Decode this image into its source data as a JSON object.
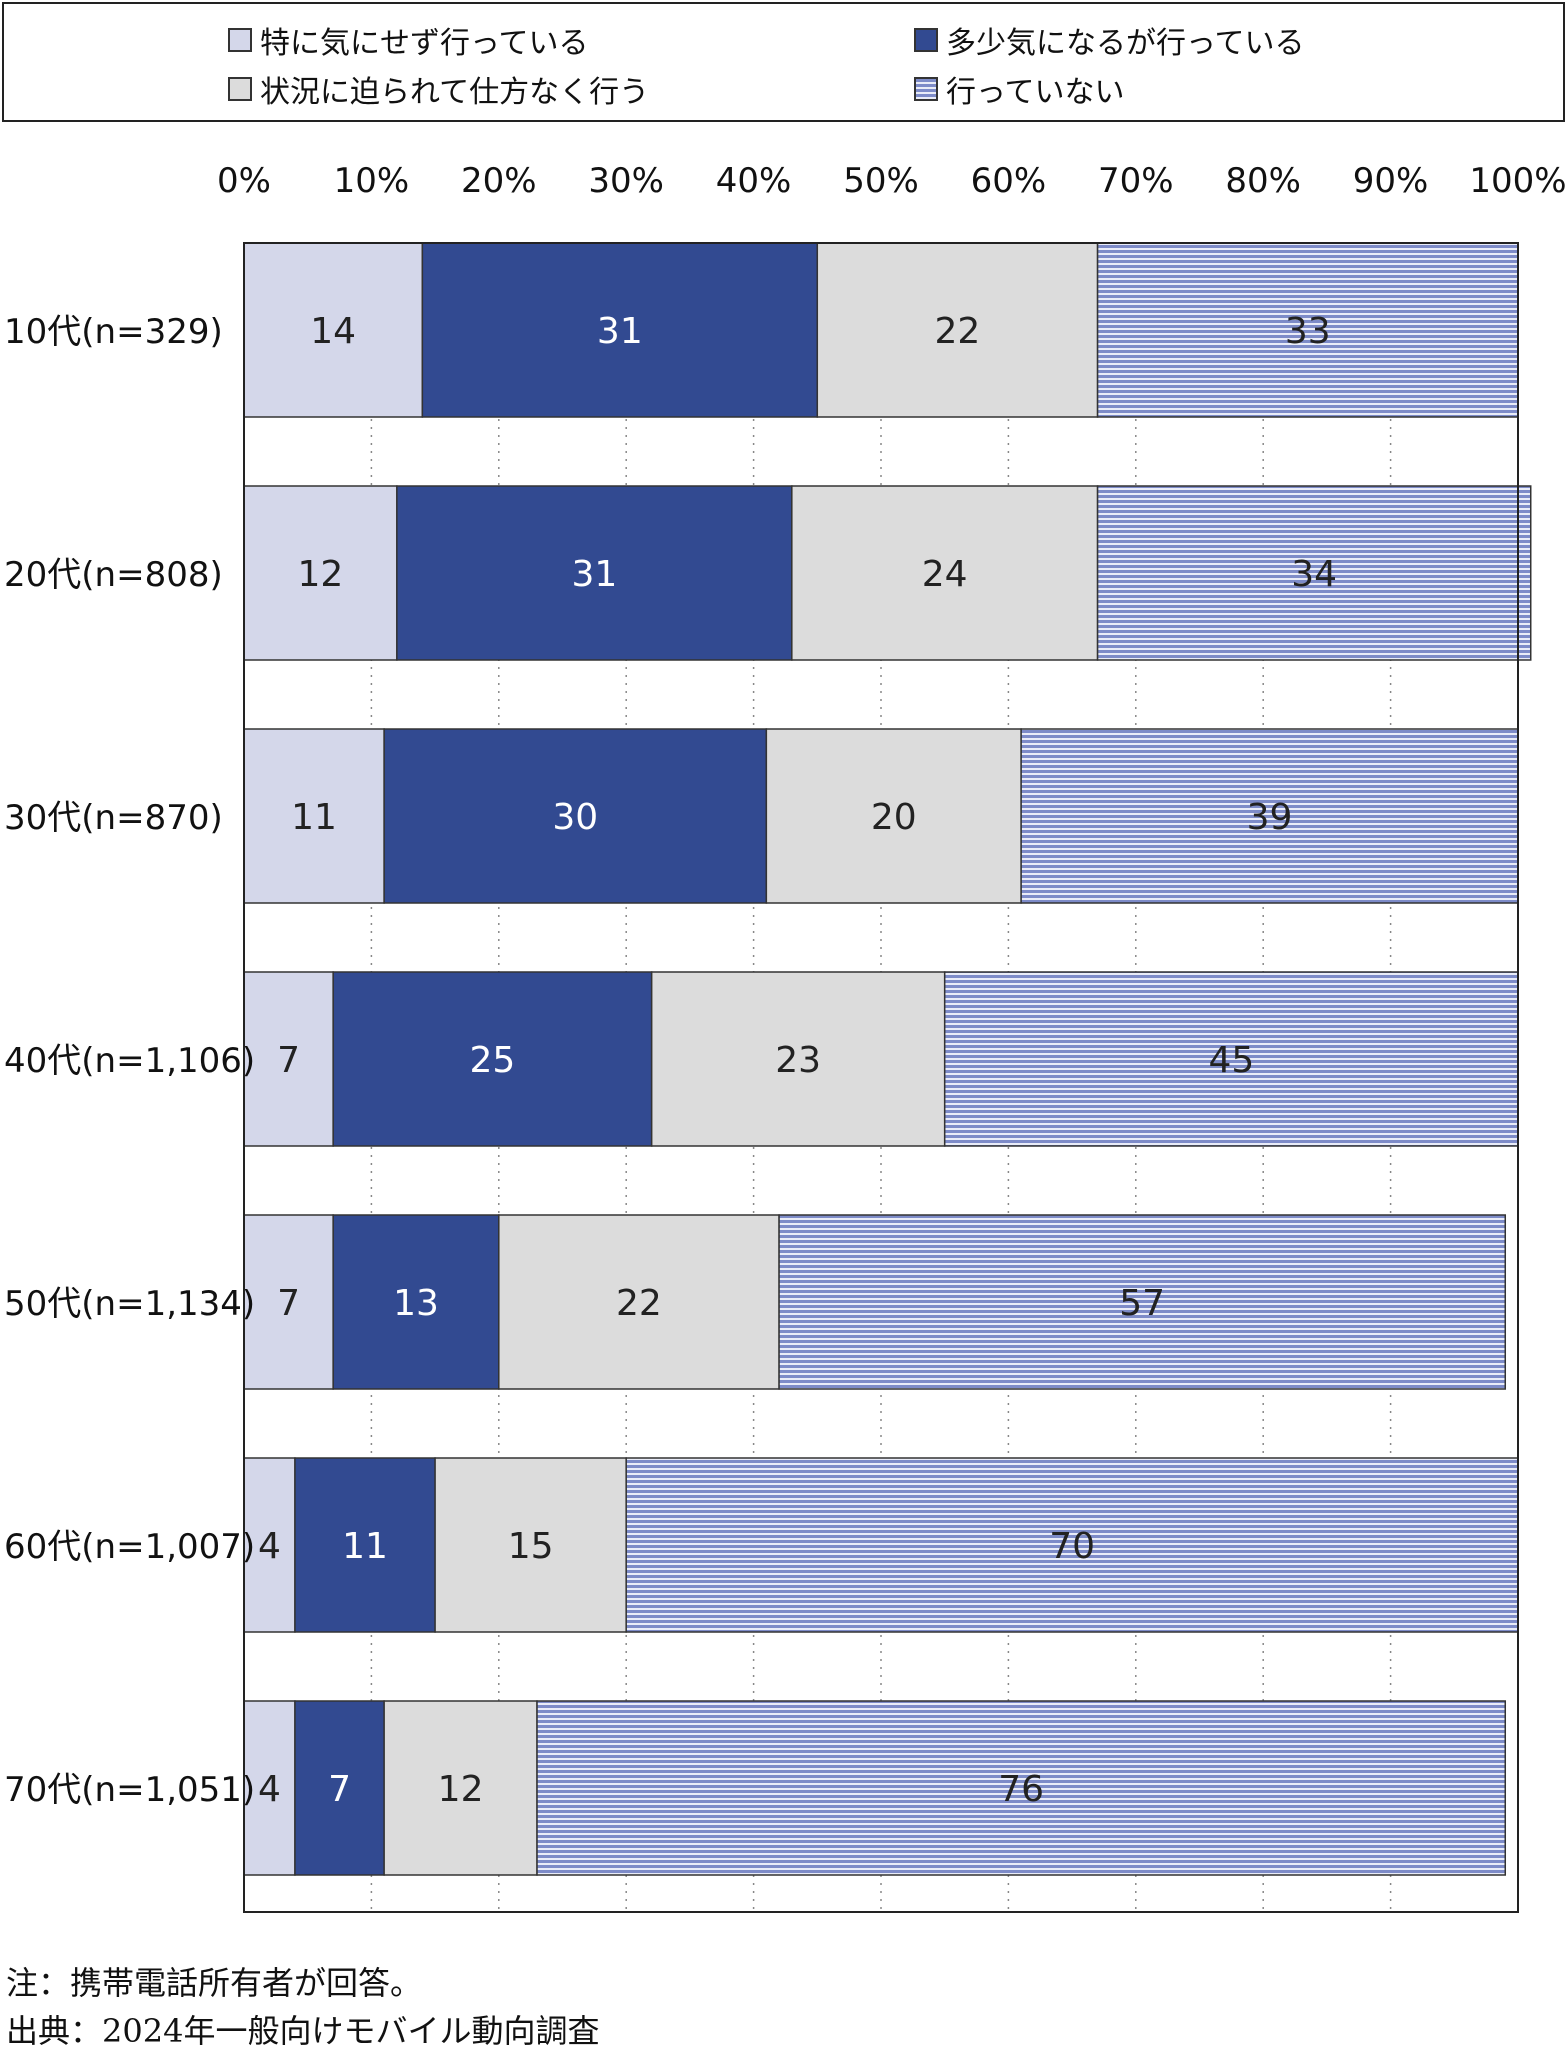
{
  "chart_data": {
    "type": "bar",
    "orientation": "horizontal",
    "stacked": true,
    "percent": true,
    "xlim": [
      0,
      100
    ],
    "x_ticks": [
      "0%",
      "10%",
      "20%",
      "30%",
      "40%",
      "50%",
      "60%",
      "70%",
      "80%",
      "90%",
      "100%"
    ],
    "grid": "vertical dotted",
    "legend_position": "top",
    "categories": [
      "10代(n=329)",
      "20代(n=808)",
      "30代(n=870)",
      "40代(n=1,106)",
      "50代(n=1,134)",
      "60代(n=1,007)",
      "70代(n=1,051)"
    ],
    "series": [
      {
        "name": "特に気にせず行っている",
        "color": "#d4d7ea",
        "pattern": "solid",
        "values": [
          14,
          12,
          11,
          7,
          7,
          4,
          4
        ],
        "label_color": "#222222"
      },
      {
        "name": "多少気になるが行っている",
        "color": "#324a91",
        "pattern": "solid",
        "values": [
          31,
          31,
          30,
          25,
          13,
          11,
          7
        ],
        "label_color": "#ffffff"
      },
      {
        "name": "状況に迫られて仕方なく行う",
        "color": "#dcdcdc",
        "pattern": "solid",
        "values": [
          22,
          24,
          20,
          23,
          22,
          15,
          12
        ],
        "label_color": "#222222"
      },
      {
        "name": "行っていない",
        "color": "#7d8bc8",
        "pattern": "horizontal-stripes",
        "values": [
          33,
          34,
          39,
          45,
          57,
          70,
          76
        ],
        "label_color": "#222222"
      }
    ]
  },
  "notes": {
    "note": "注：携帯電話所有者が回答。",
    "source": "出典：2024年一般向けモバイル動向調査"
  }
}
